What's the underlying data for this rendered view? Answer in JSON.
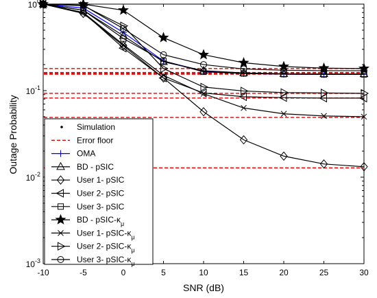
{
  "chart_data": {
    "type": "line",
    "xlabel": "SNR (dB)",
    "ylabel": "Outage Probability",
    "xlim": [
      -10,
      30
    ],
    "ylim": [
      0.001,
      1
    ],
    "yscale": "log",
    "grid": false,
    "legend_position": "bottom-left",
    "x_ticks": [
      "-10",
      "-5",
      "0",
      "5",
      "10",
      "15",
      "20",
      "25",
      "30"
    ],
    "y_ticks": [
      {
        "base": "10",
        "exp": "0"
      },
      {
        "base": "10",
        "exp": "-1"
      },
      {
        "base": "10",
        "exp": "-2"
      },
      {
        "base": "10",
        "exp": "-3"
      }
    ],
    "x": [
      -10,
      -5,
      0,
      5,
      10,
      15,
      20,
      25,
      30
    ],
    "error_floors": [
      {
        "y": 0.18
      },
      {
        "y": 0.162
      },
      {
        "y": 0.158
      },
      {
        "y": 0.155
      },
      {
        "y": 0.093
      },
      {
        "y": 0.082
      },
      {
        "y": 0.049
      },
      {
        "y": 0.0128
      }
    ],
    "series": [
      {
        "name": "OMA",
        "marker": "plus",
        "color": "#0000ff",
        "values": [
          1.0,
          0.9,
          0.47,
          0.22,
          0.168,
          0.158,
          0.155,
          0.154,
          0.154
        ]
      },
      {
        "name": "BD - pSIC",
        "marker": "triangle-up",
        "color": "#000000",
        "values": [
          1.0,
          0.85,
          0.43,
          0.215,
          0.17,
          0.16,
          0.157,
          0.156,
          0.156
        ]
      },
      {
        "name": "User 1- pSIC",
        "marker": "diamond",
        "color": "#000000",
        "values": [
          1.0,
          0.78,
          0.33,
          0.14,
          0.057,
          0.027,
          0.0175,
          0.0142,
          0.0132
        ]
      },
      {
        "name": "User 2- pSIC",
        "marker": "triangle-left",
        "color": "#000000",
        "values": [
          1.0,
          0.8,
          0.31,
          0.14,
          0.094,
          0.085,
          0.083,
          0.082,
          0.082
        ]
      },
      {
        "name": "User 3- pSIC",
        "marker": "square",
        "color": "#000000",
        "values": [
          1.0,
          0.85,
          0.4,
          0.22,
          0.165,
          0.158,
          0.155,
          0.154,
          0.154
        ]
      },
      {
        "name": "BD - pSIC-",
        "name_subscript": "μ",
        "name_symbol": "κ",
        "marker": "star",
        "color": "#000000",
        "values": [
          1.0,
          1.0,
          0.85,
          0.41,
          0.26,
          0.21,
          0.19,
          0.182,
          0.18
        ]
      },
      {
        "name": "User 1- pSIC-",
        "name_subscript": "μ",
        "name_symbol": "κ",
        "marker": "x",
        "color": "#000000",
        "values": [
          1.0,
          0.8,
          0.34,
          0.15,
          0.092,
          0.063,
          0.054,
          0.051,
          0.05
        ]
      },
      {
        "name": "User 2- pSIC-",
        "name_subscript": "μ",
        "name_symbol": "κ",
        "marker": "triangle-right",
        "color": "#000000",
        "values": [
          1.0,
          0.96,
          0.56,
          0.18,
          0.11,
          0.099,
          0.095,
          0.094,
          0.093
        ]
      },
      {
        "name": "User 3- pSIC-",
        "name_subscript": "μ",
        "name_symbol": "κ",
        "marker": "circle",
        "color": "#000000",
        "values": [
          1.0,
          0.97,
          0.52,
          0.26,
          0.2,
          0.178,
          0.172,
          0.17,
          0.17
        ]
      }
    ],
    "legend": {
      "simulation_label": "Simulation",
      "error_floor_label": "Error floor"
    },
    "colors": {
      "floor": "#dd0000",
      "oma": "#0000ff",
      "axis": "#000000"
    }
  }
}
